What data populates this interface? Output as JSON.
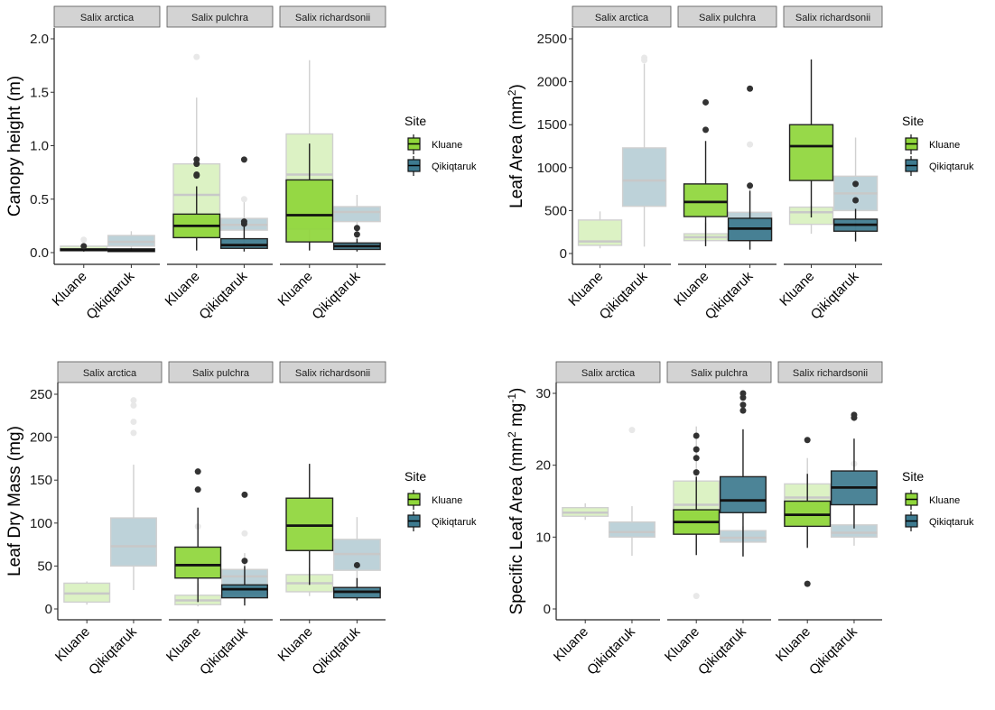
{
  "chart_data": [
    {
      "type": "box",
      "id": "canopy",
      "title": "",
      "ylabel": "Canopy height (m)",
      "ylabel_sup": "",
      "ylim": [
        -0.08,
        2.1
      ],
      "yticks": [
        0.0,
        0.5,
        1.0,
        1.5,
        2.0
      ],
      "ytick_labels": [
        "0.0",
        "0.5",
        "1.0",
        "1.5",
        "2.0"
      ],
      "facets": [
        "Salix arctica",
        "Salix pulchra",
        "Salix richardsonii"
      ],
      "categories": [
        "Kluane",
        "Qikiqtaruk"
      ],
      "background_boxes": [
        {
          "facet": 0,
          "cat": 0,
          "q1": 0.02,
          "median": 0.03,
          "q3": 0.06,
          "wlo": 0.01,
          "whi": 0.06,
          "outliers": [
            0.12
          ]
        },
        {
          "facet": 0,
          "cat": 1,
          "q1": 0.06,
          "median": 0.1,
          "q3": 0.16,
          "wlo": 0.02,
          "whi": 0.2,
          "outliers": []
        },
        {
          "facet": 1,
          "cat": 0,
          "q1": 0.15,
          "median": 0.54,
          "q3": 0.83,
          "wlo": 0.02,
          "whi": 1.45,
          "outliers": [
            1.83
          ]
        },
        {
          "facet": 1,
          "cat": 1,
          "q1": 0.21,
          "median": 0.26,
          "q3": 0.32,
          "wlo": 0.05,
          "whi": 0.48,
          "outliers": [
            0.5
          ]
        },
        {
          "facet": 2,
          "cat": 0,
          "q1": 0.22,
          "median": 0.73,
          "q3": 1.11,
          "wlo": 0.02,
          "whi": 1.8,
          "outliers": []
        },
        {
          "facet": 2,
          "cat": 1,
          "q1": 0.29,
          "median": 0.38,
          "q3": 0.43,
          "wlo": 0.05,
          "whi": 0.54,
          "outliers": []
        }
      ],
      "series": [
        {
          "name": "Kluane",
          "color": "#8fd63a",
          "boxes": [
            {
              "facet": 0,
              "q1": 0.02,
              "median": 0.025,
              "q3": 0.035,
              "wlo": 0.01,
              "whi": 0.04,
              "outliers": [
                0.06
              ]
            },
            {
              "facet": 1,
              "q1": 0.14,
              "median": 0.25,
              "q3": 0.36,
              "wlo": 0.02,
              "whi": 0.62,
              "outliers": [
                0.72,
                0.73,
                0.83,
                0.87
              ]
            },
            {
              "facet": 2,
              "q1": 0.1,
              "median": 0.35,
              "q3": 0.68,
              "wlo": 0.02,
              "whi": 1.02,
              "outliers": []
            }
          ]
        },
        {
          "name": "Qikiqtaruk",
          "color": "#3d7a8f",
          "boxes": [
            {
              "facet": 0,
              "q1": 0.01,
              "median": 0.02,
              "q3": 0.035,
              "wlo": 0.005,
              "whi": 0.04,
              "outliers": []
            },
            {
              "facet": 1,
              "q1": 0.04,
              "median": 0.07,
              "q3": 0.13,
              "wlo": 0.01,
              "whi": 0.25,
              "outliers": [
                0.27,
                0.29,
                0.87
              ]
            },
            {
              "facet": 2,
              "q1": 0.03,
              "median": 0.06,
              "q3": 0.09,
              "wlo": 0.01,
              "whi": 0.13,
              "outliers": [
                0.17,
                0.23
              ]
            }
          ]
        }
      ]
    },
    {
      "type": "box",
      "id": "leaf_area",
      "ylabel": "Leaf Area (mm",
      "ylabel_sup": "2",
      "ylabel_end": ")",
      "ylim": [
        -120,
        2580
      ],
      "yticks": [
        0,
        500,
        1000,
        1500,
        2000,
        2500
      ],
      "ytick_labels": [
        "0",
        "500",
        "1000",
        "1500",
        "2000",
        "2500"
      ],
      "facets": [
        "Salix arctica",
        "Salix pulchra",
        "Salix richardsonii"
      ],
      "categories": [
        "Kluane",
        "Qikiqtaruk"
      ],
      "background_boxes": [
        {
          "facet": 0,
          "cat": 0,
          "q1": 95,
          "median": 140,
          "q3": 390,
          "wlo": 60,
          "whi": 490,
          "outliers": []
        },
        {
          "facet": 0,
          "cat": 1,
          "q1": 550,
          "median": 850,
          "q3": 1230,
          "wlo": 80,
          "whi": 2210,
          "outliers": [
            2250,
            2280
          ]
        },
        {
          "facet": 1,
          "cat": 0,
          "q1": 150,
          "median": 190,
          "q3": 230,
          "wlo": 120,
          "whi": 360,
          "outliers": []
        },
        {
          "facet": 1,
          "cat": 1,
          "q1": 150,
          "median": 300,
          "q3": 480,
          "wlo": 50,
          "whi": 760,
          "outliers": [
            1270
          ]
        },
        {
          "facet": 2,
          "cat": 0,
          "q1": 340,
          "median": 480,
          "q3": 540,
          "wlo": 230,
          "whi": 560,
          "outliers": []
        },
        {
          "facet": 2,
          "cat": 1,
          "q1": 500,
          "median": 700,
          "q3": 900,
          "wlo": 160,
          "whi": 1350,
          "outliers": []
        }
      ],
      "series": [
        {
          "name": "Kluane",
          "color": "#8fd63a",
          "boxes": [
            {
              "facet": 1,
              "q1": 430,
              "median": 600,
              "q3": 810,
              "wlo": 85,
              "whi": 1310,
              "outliers": [
                1440,
                1760
              ]
            },
            {
              "facet": 2,
              "q1": 850,
              "median": 1250,
              "q3": 1500,
              "wlo": 420,
              "whi": 2260,
              "outliers": []
            }
          ]
        },
        {
          "name": "Qikiqtaruk",
          "color": "#3d7a8f",
          "boxes": [
            {
              "facet": 1,
              "q1": 150,
              "median": 290,
              "q3": 410,
              "wlo": 45,
              "whi": 730,
              "outliers": [
                790,
                1920
              ]
            },
            {
              "facet": 2,
              "q1": 260,
              "median": 335,
              "q3": 400,
              "wlo": 140,
              "whi": 520,
              "outliers": [
                620,
                810
              ]
            }
          ]
        }
      ]
    },
    {
      "type": "box",
      "id": "leaf_dry_mass",
      "ylabel": "Leaf Dry Mass (mg)",
      "ylabel_sup": "",
      "ylim": [
        -12,
        262
      ],
      "yticks": [
        0,
        50,
        100,
        150,
        200,
        250
      ],
      "ytick_labels": [
        "0",
        "50",
        "100",
        "150",
        "200",
        "250"
      ],
      "facets": [
        "Salix arctica",
        "Salix pulchra",
        "Salix richardsonii"
      ],
      "categories": [
        "Kluane",
        "Qikiqtaruk"
      ],
      "background_boxes": [
        {
          "facet": 0,
          "cat": 0,
          "q1": 8,
          "median": 18,
          "q3": 30,
          "wlo": 5,
          "whi": 32,
          "outliers": []
        },
        {
          "facet": 0,
          "cat": 1,
          "q1": 50,
          "median": 73,
          "q3": 106,
          "wlo": 22,
          "whi": 168,
          "outliers": [
            205,
            218,
            237,
            243
          ]
        },
        {
          "facet": 1,
          "cat": 0,
          "q1": 5,
          "median": 10,
          "q3": 16,
          "wlo": 3,
          "whi": 30,
          "outliers": [
            96
          ]
        },
        {
          "facet": 1,
          "cat": 1,
          "q1": 17,
          "median": 38,
          "q3": 46,
          "wlo": 8,
          "whi": 65,
          "outliers": [
            88
          ]
        },
        {
          "facet": 2,
          "cat": 0,
          "q1": 20,
          "median": 30,
          "q3": 40,
          "wlo": 15,
          "whi": 48,
          "outliers": []
        },
        {
          "facet": 2,
          "cat": 1,
          "q1": 45,
          "median": 64,
          "q3": 81,
          "wlo": 20,
          "whi": 107,
          "outliers": []
        }
      ],
      "series": [
        {
          "name": "Kluane",
          "color": "#8fd63a",
          "boxes": [
            {
              "facet": 1,
              "q1": 36,
              "median": 51,
              "q3": 72,
              "wlo": 8,
              "whi": 118,
              "outliers": [
                139,
                160
              ]
            },
            {
              "facet": 2,
              "q1": 68,
              "median": 97,
              "q3": 129,
              "wlo": 28,
              "whi": 169,
              "outliers": []
            }
          ]
        },
        {
          "name": "Qikiqtaruk",
          "color": "#3d7a8f",
          "boxes": [
            {
              "facet": 1,
              "q1": 13,
              "median": 23,
              "q3": 28,
              "wlo": 4,
              "whi": 50,
              "outliers": [
                56,
                133
              ]
            },
            {
              "facet": 2,
              "q1": 13,
              "median": 20,
              "q3": 25,
              "wlo": 10,
              "whi": 36,
              "outliers": [
                51
              ]
            }
          ]
        }
      ]
    },
    {
      "type": "box",
      "id": "sla",
      "ylabel": "Specific Leaf Area (mm",
      "ylabel_sup": "2",
      "ylabel_mid": " mg",
      "ylabel_sup2": "-1",
      "ylabel_end": ")",
      "ylim": [
        -1.4,
        31.5
      ],
      "yticks": [
        0,
        10,
        20,
        30
      ],
      "ytick_labels": [
        "0",
        "10",
        "20",
        "30"
      ],
      "facets": [
        "Salix arctica",
        "Salix pulchra",
        "Salix richardsonii"
      ],
      "categories": [
        "Kluane",
        "Qikiqtaruk"
      ],
      "background_boxes": [
        {
          "facet": 0,
          "cat": 0,
          "q1": 12.9,
          "median": 13.4,
          "q3": 14.1,
          "wlo": 12.4,
          "whi": 14.7,
          "outliers": []
        },
        {
          "facet": 0,
          "cat": 1,
          "q1": 10.0,
          "median": 10.7,
          "q3": 12.1,
          "wlo": 7.4,
          "whi": 14.3,
          "outliers": [
            24.9
          ]
        },
        {
          "facet": 1,
          "cat": 0,
          "q1": 10.6,
          "median": 14.5,
          "q3": 17.8,
          "wlo": 7.5,
          "whi": 25.4,
          "outliers": [
            1.8
          ]
        },
        {
          "facet": 1,
          "cat": 1,
          "q1": 9.3,
          "median": 9.9,
          "q3": 10.9,
          "wlo": 7.3,
          "whi": 11.5,
          "outliers": []
        },
        {
          "facet": 2,
          "cat": 0,
          "q1": 11.8,
          "median": 15.5,
          "q3": 17.4,
          "wlo": 9.0,
          "whi": 21.0,
          "outliers": []
        },
        {
          "facet": 2,
          "cat": 1,
          "q1": 10.0,
          "median": 10.6,
          "q3": 11.7,
          "wlo": 8.8,
          "whi": 14.3,
          "outliers": [
            20.2
          ]
        }
      ],
      "series": [
        {
          "name": "Kluane",
          "color": "#8fd63a",
          "boxes": [
            {
              "facet": 1,
              "q1": 10.4,
              "median": 12.1,
              "q3": 13.8,
              "wlo": 7.5,
              "whi": 18.4,
              "outliers": [
                19.0,
                21.0,
                22.2,
                24.1
              ]
            },
            {
              "facet": 2,
              "q1": 11.5,
              "median": 13.1,
              "q3": 15.0,
              "wlo": 8.5,
              "whi": 18.8,
              "outliers": [
                3.5,
                23.5
              ]
            }
          ]
        },
        {
          "name": "Qikiqtaruk",
          "color": "#3d7a8f",
          "boxes": [
            {
              "facet": 1,
              "q1": 13.4,
              "median": 15.1,
              "q3": 18.4,
              "wlo": 7.3,
              "whi": 25.0,
              "outliers": [
                27.6,
                28.4,
                29.4,
                30.0
              ]
            },
            {
              "facet": 2,
              "q1": 14.5,
              "median": 16.9,
              "q3": 19.2,
              "wlo": 11.2,
              "whi": 23.7,
              "outliers": [
                26.6,
                27.0
              ]
            }
          ]
        }
      ]
    }
  ],
  "legend": {
    "title": "Site",
    "items": [
      {
        "label": "Kluane",
        "color": "#8fd63a"
      },
      {
        "label": "Qikiqtaruk",
        "color": "#3d7a8f"
      }
    ]
  },
  "colors": {
    "kluane_fill": "#8fd63a",
    "qikiqtaruk_fill": "#3d7a8f",
    "kluane_bg_fill": "#dcf2c4",
    "qikiqtaruk_bg_fill": "#bdd2d9",
    "strip_fill": "#d3d3d3"
  }
}
